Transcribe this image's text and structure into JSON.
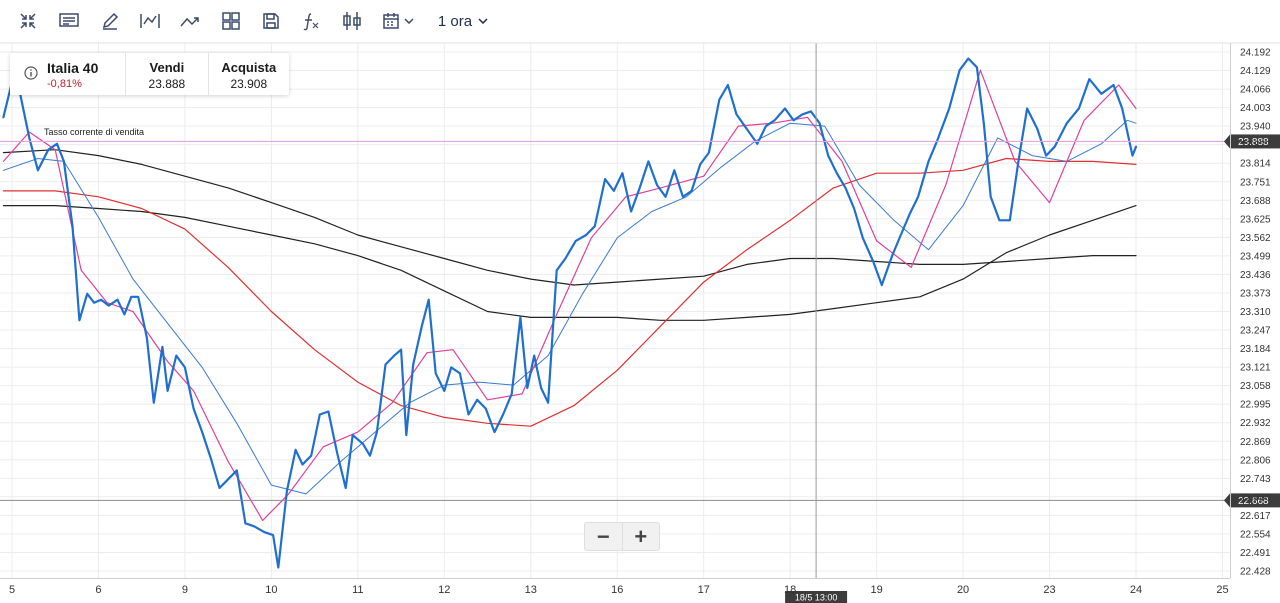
{
  "toolbar": {
    "timeframe": "1 ora"
  },
  "instrument": {
    "name": "Italia 40",
    "change": "-0,81%",
    "sell_label": "Vendi",
    "sell_price": "23.888",
    "buy_label": "Acquista",
    "buy_price": "23.908"
  },
  "current_rate_label": "Tasso corrente di vendita",
  "zoom": {
    "minus": "−",
    "plus": "+"
  },
  "colors": {
    "price": "#1f6fd1",
    "ma_pink": "#e0409a",
    "ma_blue": "#3a7ad0",
    "ma_red": "#e03030",
    "ma_black": "#222222",
    "current_line": "#e9a0e6",
    "price_badge": "#3c3c3c"
  },
  "chart_data": {
    "type": "line",
    "title": "",
    "xlabel": "",
    "ylabel": "",
    "x_tick_labels": [
      "5",
      "6",
      "9",
      "10",
      "11",
      "12",
      "13",
      "16",
      "17",
      "18",
      "19",
      "20",
      "23",
      "24",
      "25"
    ],
    "y_tick_labels": [
      "24.192",
      "24.129",
      "24.066",
      "24.003",
      "23.940",
      "23.877",
      "23.814",
      "23.751",
      "23.688",
      "23.625",
      "23.562",
      "23.499",
      "23.436",
      "23.373",
      "23.310",
      "23.247",
      "23.184",
      "23.121",
      "23.058",
      "22.995",
      "22.932",
      "22.869",
      "22.806",
      "22.743",
      "22.680",
      "22.617",
      "22.554",
      "22.491",
      "22.428"
    ],
    "ylim": [
      22.428,
      24.192
    ],
    "xlim": [
      -0.1,
      14.0
    ],
    "current_sell_price": 23.888,
    "crosshair_price": 22.668,
    "crosshair_price_label": "22.668",
    "current_price_label": "23.888",
    "crosshair_x": 9.3,
    "crosshair_time_label": "18/5 13:00",
    "series": [
      {
        "key": "price",
        "values": [
          [
            -0.1,
            23.97
          ],
          [
            0.0,
            24.09
          ],
          [
            0.08,
            24.07
          ],
          [
            0.2,
            23.9
          ],
          [
            0.3,
            23.79
          ],
          [
            0.42,
            23.86
          ],
          [
            0.52,
            23.88
          ],
          [
            0.6,
            23.82
          ],
          [
            0.7,
            23.6
          ],
          [
            0.78,
            23.28
          ],
          [
            0.87,
            23.37
          ],
          [
            0.95,
            23.34
          ],
          [
            1.03,
            23.35
          ],
          [
            1.12,
            23.33
          ],
          [
            1.22,
            23.35
          ],
          [
            1.3,
            23.3
          ],
          [
            1.38,
            23.36
          ],
          [
            1.46,
            23.36
          ],
          [
            1.56,
            23.22
          ],
          [
            1.64,
            23.0
          ],
          [
            1.74,
            23.19
          ],
          [
            1.8,
            23.04
          ],
          [
            1.9,
            23.16
          ],
          [
            2.0,
            23.12
          ],
          [
            2.1,
            22.98
          ],
          [
            2.2,
            22.9
          ],
          [
            2.3,
            22.81
          ],
          [
            2.4,
            22.71
          ],
          [
            2.5,
            22.74
          ],
          [
            2.6,
            22.77
          ],
          [
            2.7,
            22.59
          ],
          [
            2.8,
            22.58
          ],
          [
            2.92,
            22.56
          ],
          [
            3.02,
            22.55
          ],
          [
            3.08,
            22.44
          ],
          [
            3.18,
            22.7
          ],
          [
            3.28,
            22.84
          ],
          [
            3.36,
            22.79
          ],
          [
            3.46,
            22.82
          ],
          [
            3.56,
            22.96
          ],
          [
            3.66,
            22.97
          ],
          [
            3.76,
            22.83
          ],
          [
            3.86,
            22.71
          ],
          [
            3.94,
            22.89
          ],
          [
            4.06,
            22.86
          ],
          [
            4.14,
            22.82
          ],
          [
            4.22,
            22.9
          ],
          [
            4.32,
            23.13
          ],
          [
            4.42,
            23.16
          ],
          [
            4.5,
            23.18
          ],
          [
            4.56,
            22.89
          ],
          [
            4.64,
            23.13
          ],
          [
            4.74,
            23.26
          ],
          [
            4.82,
            23.35
          ],
          [
            4.9,
            23.1
          ],
          [
            5.0,
            23.04
          ],
          [
            5.08,
            23.12
          ],
          [
            5.18,
            23.1
          ],
          [
            5.28,
            22.96
          ],
          [
            5.38,
            23.01
          ],
          [
            5.48,
            22.98
          ],
          [
            5.58,
            22.9
          ],
          [
            5.68,
            22.96
          ],
          [
            5.78,
            23.03
          ],
          [
            5.88,
            23.29
          ],
          [
            5.96,
            23.05
          ],
          [
            6.04,
            23.16
          ],
          [
            6.12,
            23.05
          ],
          [
            6.2,
            23.0
          ],
          [
            6.3,
            23.45
          ],
          [
            6.4,
            23.49
          ],
          [
            6.52,
            23.55
          ],
          [
            6.64,
            23.57
          ],
          [
            6.74,
            23.6
          ],
          [
            6.86,
            23.76
          ],
          [
            6.96,
            23.72
          ],
          [
            7.06,
            23.78
          ],
          [
            7.16,
            23.65
          ],
          [
            7.26,
            23.73
          ],
          [
            7.36,
            23.82
          ],
          [
            7.46,
            23.74
          ],
          [
            7.56,
            23.7
          ],
          [
            7.66,
            23.79
          ],
          [
            7.76,
            23.7
          ],
          [
            7.86,
            23.72
          ],
          [
            7.96,
            23.81
          ],
          [
            8.06,
            23.85
          ],
          [
            8.18,
            24.03
          ],
          [
            8.28,
            24.08
          ],
          [
            8.38,
            23.98
          ],
          [
            8.5,
            23.93
          ],
          [
            8.62,
            23.88
          ],
          [
            8.72,
            23.94
          ],
          [
            8.82,
            23.96
          ],
          [
            8.94,
            24.0
          ],
          [
            9.04,
            23.96
          ],
          [
            9.14,
            23.98
          ],
          [
            9.24,
            23.99
          ],
          [
            9.34,
            23.95
          ],
          [
            9.44,
            23.84
          ],
          [
            9.54,
            23.78
          ],
          [
            9.64,
            23.73
          ],
          [
            9.74,
            23.66
          ],
          [
            9.84,
            23.56
          ],
          [
            9.96,
            23.48
          ],
          [
            10.06,
            23.4
          ],
          [
            10.18,
            23.5
          ],
          [
            10.28,
            23.57
          ],
          [
            10.38,
            23.64
          ],
          [
            10.48,
            23.7
          ],
          [
            10.6,
            23.82
          ],
          [
            10.7,
            23.89
          ],
          [
            10.84,
            24.0
          ],
          [
            10.96,
            24.13
          ],
          [
            11.06,
            24.17
          ],
          [
            11.16,
            24.14
          ],
          [
            11.24,
            23.95
          ],
          [
            11.32,
            23.7
          ],
          [
            11.42,
            23.62
          ],
          [
            11.54,
            23.62
          ],
          [
            11.64,
            23.82
          ],
          [
            11.74,
            24.0
          ],
          [
            11.86,
            23.93
          ],
          [
            11.96,
            23.84
          ],
          [
            12.06,
            23.87
          ],
          [
            12.2,
            23.95
          ],
          [
            12.34,
            24.0
          ],
          [
            12.46,
            24.1
          ],
          [
            12.6,
            24.05
          ],
          [
            12.74,
            24.08
          ],
          [
            12.84,
            24.0
          ],
          [
            12.96,
            23.84
          ],
          [
            13.0,
            23.87
          ]
        ]
      },
      {
        "key": "ma_pink",
        "values": [
          [
            -0.1,
            23.82
          ],
          [
            0.2,
            23.92
          ],
          [
            0.5,
            23.86
          ],
          [
            0.8,
            23.45
          ],
          [
            1.1,
            23.34
          ],
          [
            1.4,
            23.31
          ],
          [
            1.8,
            23.14
          ],
          [
            2.1,
            23.04
          ],
          [
            2.5,
            22.8
          ],
          [
            2.9,
            22.6
          ],
          [
            3.2,
            22.69
          ],
          [
            3.6,
            22.85
          ],
          [
            4.0,
            22.9
          ],
          [
            4.4,
            23.0
          ],
          [
            4.8,
            23.17
          ],
          [
            5.1,
            23.18
          ],
          [
            5.5,
            23.01
          ],
          [
            5.9,
            23.03
          ],
          [
            6.3,
            23.3
          ],
          [
            6.7,
            23.56
          ],
          [
            7.1,
            23.7
          ],
          [
            7.5,
            23.73
          ],
          [
            8.0,
            23.77
          ],
          [
            8.4,
            23.94
          ],
          [
            8.8,
            23.95
          ],
          [
            9.2,
            23.97
          ],
          [
            9.6,
            23.82
          ],
          [
            10.0,
            23.55
          ],
          [
            10.4,
            23.46
          ],
          [
            10.8,
            23.74
          ],
          [
            11.2,
            24.13
          ],
          [
            11.6,
            23.82
          ],
          [
            12.0,
            23.68
          ],
          [
            12.4,
            23.96
          ],
          [
            12.8,
            24.08
          ],
          [
            13.0,
            24.0
          ]
        ]
      },
      {
        "key": "ma_blue",
        "values": [
          [
            -0.1,
            23.79
          ],
          [
            0.3,
            23.83
          ],
          [
            0.6,
            23.82
          ],
          [
            1.0,
            23.63
          ],
          [
            1.4,
            23.42
          ],
          [
            1.8,
            23.27
          ],
          [
            2.2,
            23.12
          ],
          [
            2.6,
            22.93
          ],
          [
            3.0,
            22.72
          ],
          [
            3.4,
            22.69
          ],
          [
            3.8,
            22.8
          ],
          [
            4.2,
            22.9
          ],
          [
            4.6,
            23.0
          ],
          [
            5.0,
            23.06
          ],
          [
            5.4,
            23.07
          ],
          [
            5.8,
            23.06
          ],
          [
            6.2,
            23.16
          ],
          [
            6.6,
            23.37
          ],
          [
            7.0,
            23.56
          ],
          [
            7.4,
            23.65
          ],
          [
            7.8,
            23.7
          ],
          [
            8.2,
            23.8
          ],
          [
            8.6,
            23.89
          ],
          [
            9.0,
            23.95
          ],
          [
            9.4,
            23.94
          ],
          [
            9.8,
            23.74
          ],
          [
            10.2,
            23.62
          ],
          [
            10.6,
            23.52
          ],
          [
            11.0,
            23.67
          ],
          [
            11.4,
            23.9
          ],
          [
            11.8,
            23.84
          ],
          [
            12.2,
            23.82
          ],
          [
            12.6,
            23.88
          ],
          [
            12.9,
            23.96
          ],
          [
            13.0,
            23.95
          ]
        ]
      },
      {
        "key": "ma_red",
        "values": [
          [
            -0.1,
            23.72
          ],
          [
            0.5,
            23.72
          ],
          [
            1.0,
            23.7
          ],
          [
            1.5,
            23.66
          ],
          [
            2.0,
            23.59
          ],
          [
            2.5,
            23.46
          ],
          [
            3.0,
            23.31
          ],
          [
            3.5,
            23.18
          ],
          [
            4.0,
            23.07
          ],
          [
            4.5,
            22.99
          ],
          [
            5.0,
            22.95
          ],
          [
            5.5,
            22.93
          ],
          [
            6.0,
            22.92
          ],
          [
            6.5,
            22.99
          ],
          [
            7.0,
            23.11
          ],
          [
            7.5,
            23.26
          ],
          [
            8.0,
            23.41
          ],
          [
            8.5,
            23.52
          ],
          [
            9.0,
            23.62
          ],
          [
            9.5,
            23.73
          ],
          [
            10.0,
            23.78
          ],
          [
            10.5,
            23.78
          ],
          [
            11.0,
            23.79
          ],
          [
            11.5,
            23.83
          ],
          [
            12.0,
            23.82
          ],
          [
            12.5,
            23.82
          ],
          [
            13.0,
            23.81
          ]
        ]
      },
      {
        "key": "ma_black_slow",
        "values": [
          [
            -0.1,
            23.85
          ],
          [
            0.5,
            23.86
          ],
          [
            1.0,
            23.84
          ],
          [
            1.5,
            23.81
          ],
          [
            2.0,
            23.77
          ],
          [
            2.5,
            23.73
          ],
          [
            3.0,
            23.68
          ],
          [
            3.5,
            23.63
          ],
          [
            4.0,
            23.57
          ],
          [
            4.5,
            23.53
          ],
          [
            5.0,
            23.49
          ],
          [
            5.5,
            23.45
          ],
          [
            6.0,
            23.42
          ],
          [
            6.5,
            23.4
          ],
          [
            7.0,
            23.41
          ],
          [
            7.5,
            23.42
          ],
          [
            8.0,
            23.43
          ],
          [
            8.5,
            23.47
          ],
          [
            9.0,
            23.49
          ],
          [
            9.5,
            23.49
          ],
          [
            10.0,
            23.48
          ],
          [
            10.5,
            23.47
          ],
          [
            11.0,
            23.47
          ],
          [
            11.5,
            23.48
          ],
          [
            12.0,
            23.49
          ],
          [
            12.5,
            23.5
          ],
          [
            13.0,
            23.5
          ]
        ]
      },
      {
        "key": "ma_black_long",
        "values": [
          [
            -0.1,
            23.67
          ],
          [
            0.5,
            23.67
          ],
          [
            1.0,
            23.66
          ],
          [
            1.5,
            23.65
          ],
          [
            2.0,
            23.63
          ],
          [
            2.5,
            23.6
          ],
          [
            3.0,
            23.57
          ],
          [
            3.5,
            23.54
          ],
          [
            4.0,
            23.5
          ],
          [
            4.5,
            23.45
          ],
          [
            5.0,
            23.38
          ],
          [
            5.5,
            23.31
          ],
          [
            6.0,
            23.29
          ],
          [
            6.5,
            23.29
          ],
          [
            7.0,
            23.29
          ],
          [
            7.5,
            23.28
          ],
          [
            8.0,
            23.28
          ],
          [
            8.5,
            23.29
          ],
          [
            9.0,
            23.3
          ],
          [
            9.5,
            23.32
          ],
          [
            10.0,
            23.34
          ],
          [
            10.5,
            23.36
          ],
          [
            11.0,
            23.42
          ],
          [
            11.5,
            23.51
          ],
          [
            12.0,
            23.57
          ],
          [
            12.5,
            23.62
          ],
          [
            13.0,
            23.67
          ]
        ]
      }
    ]
  }
}
